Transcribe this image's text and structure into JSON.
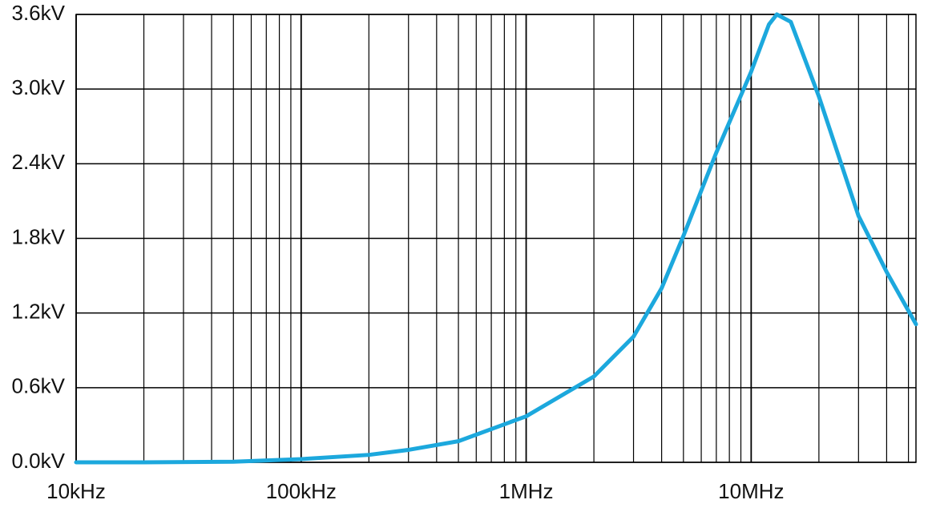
{
  "chart_data": {
    "type": "line",
    "xscale": "log",
    "grid": true,
    "x": [
      10000,
      20000,
      50000,
      100000,
      200000,
      300000,
      500000,
      1000000,
      2000000,
      3000000,
      4000000,
      5000000,
      7000000,
      10000000,
      12000000,
      13000000,
      15000000,
      20000000,
      30000000,
      40000000,
      54000000
    ],
    "series": [
      {
        "color": "#1ca8dd",
        "values": [
          0.0,
          0.0,
          0.005,
          0.026,
          0.06,
          0.1,
          0.17,
          0.37,
          0.69,
          1.01,
          1.4,
          1.82,
          2.49,
          3.14,
          3.52,
          3.6,
          3.54,
          2.94,
          1.98,
          1.53,
          1.11
        ]
      }
    ],
    "xlim": [
      10000,
      54000000
    ],
    "xticks": [
      {
        "value": 10000,
        "label": "10kHz"
      },
      {
        "value": 100000,
        "label": "100kHz"
      },
      {
        "value": 1000000,
        "label": "1MHz"
      },
      {
        "value": 10000000,
        "label": "10MHz"
      }
    ],
    "xminorticks": [
      20000,
      30000,
      40000,
      50000,
      60000,
      70000,
      80000,
      90000,
      200000,
      300000,
      400000,
      500000,
      600000,
      700000,
      800000,
      900000,
      2000000,
      3000000,
      4000000,
      5000000,
      6000000,
      7000000,
      8000000,
      9000000,
      20000000,
      30000000,
      40000000,
      50000000
    ],
    "ylim": [
      0,
      3.6
    ],
    "yticks": [
      {
        "value": 0,
        "label": "0.0kV"
      },
      {
        "value": 0.6,
        "label": "0.6kV"
      },
      {
        "value": 1.2,
        "label": "1.2kV"
      },
      {
        "value": 1.8,
        "label": "1.8kV"
      },
      {
        "value": 2.4,
        "label": "2.4kV"
      },
      {
        "value": 3.0,
        "label": "3.0kV"
      },
      {
        "value": 3.6,
        "label": "3.6kV"
      }
    ]
  }
}
